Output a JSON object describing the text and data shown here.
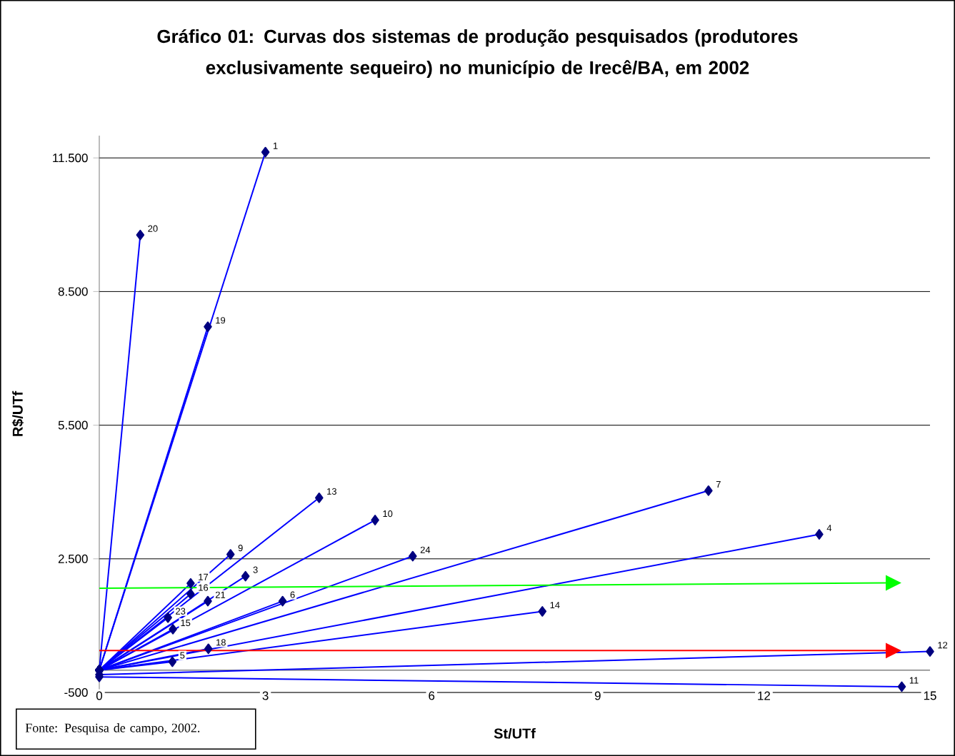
{
  "chart_data": {
    "type": "line",
    "title": "Gráfico 01: Curvas dos sistemas de produção pesquisados (produtores exclusivamente sequeiro) no município de Irecê/BA, em 2002",
    "xlabel": "St/UTf",
    "ylabel": "R$/UTf",
    "xlim": [
      0,
      15
    ],
    "ylim": [
      -500,
      12000
    ],
    "xticks": [
      0,
      3,
      6,
      9,
      12,
      15
    ],
    "yticks": [
      {
        "value": -500,
        "label": "-500"
      },
      {
        "value": 2500,
        "label": "2.500"
      },
      {
        "value": 5500,
        "label": "5.500"
      },
      {
        "value": 8500,
        "label": "8.500"
      },
      {
        "value": 11500,
        "label": "11.500"
      }
    ],
    "grid": "y",
    "marker": "diamond",
    "line_style": "solid",
    "ref_lines": [
      {
        "axis": "y",
        "value": 0,
        "color": "#808080"
      }
    ],
    "series": [
      {
        "color": "#0000ff",
        "x": [
          0,
          3.0
        ],
        "values": [
          0,
          11630
        ]
      },
      {
        "color": "#0000ff",
        "x": [
          0,
          0.74
        ],
        "values": [
          0,
          9770
        ]
      },
      {
        "color": "#0000ff",
        "x": [
          0,
          1.96
        ],
        "values": [
          0,
          7710
        ]
      },
      {
        "color": "#0000ff",
        "x": [
          0,
          3.97
        ],
        "values": [
          0,
          3870
        ]
      },
      {
        "color": "#0000ff",
        "x": [
          0,
          4.98
        ],
        "values": [
          0,
          3370
        ]
      },
      {
        "color": "#0000ff",
        "x": [
          0,
          11.0
        ],
        "values": [
          0,
          4030
        ]
      },
      {
        "color": "#0000ff",
        "x": [
          0,
          13.0
        ],
        "values": [
          0,
          3050
        ]
      },
      {
        "color": "#0000ff",
        "x": [
          0,
          2.37
        ],
        "values": [
          0,
          2600
        ]
      },
      {
        "color": "#0000ff",
        "x": [
          0,
          5.66
        ],
        "values": [
          0,
          2560
        ]
      },
      {
        "color": "#0000ff",
        "x": [
          0,
          2.64
        ],
        "values": [
          0,
          2110
        ]
      },
      {
        "color": "#0000ff",
        "x": [
          0,
          1.65
        ],
        "values": [
          0,
          1950
        ]
      },
      {
        "color": "#0000ff",
        "x": [
          0,
          1.65
        ],
        "values": [
          0,
          1710
        ]
      },
      {
        "color": "#0000ff",
        "x": [
          0,
          1.96
        ],
        "values": [
          0,
          1550
        ]
      },
      {
        "color": "#0000ff",
        "x": [
          0,
          3.31
        ],
        "values": [
          0,
          1550
        ]
      },
      {
        "color": "#0000ff",
        "x": [
          0,
          1.24
        ],
        "values": [
          0,
          1180
        ]
      },
      {
        "color": "#0000ff",
        "x": [
          0,
          1.33
        ],
        "values": [
          0,
          920
        ]
      },
      {
        "color": "#0000ff",
        "x": [
          0,
          8.0
        ],
        "values": [
          0,
          1320
        ]
      },
      {
        "color": "#0000ff",
        "x": [
          0,
          1.97
        ],
        "values": [
          0,
          480
        ]
      },
      {
        "color": "#0000ff",
        "x": [
          0,
          1.32
        ],
        "values": [
          0,
          190
        ]
      },
      {
        "color": "#0000ff",
        "x": [
          0,
          14.49
        ],
        "values": [
          -150,
          -370
        ]
      },
      {
        "color": "#0000ff",
        "x": [
          0,
          15
        ],
        "values": [
          -100,
          420
        ]
      },
      {
        "color": "#00ff00",
        "marker": "none",
        "x": [
          0,
          14.2
        ],
        "values": [
          1840,
          1960
        ]
      },
      {
        "color": "#ff0000",
        "marker": "none",
        "x": [
          0,
          14.2
        ],
        "values": [
          440,
          440
        ]
      }
    ],
    "annotations": [
      {
        "text": "1",
        "x": 3.0,
        "y": 11630
      },
      {
        "text": "20",
        "x": 0.74,
        "y": 9770
      },
      {
        "text": "19",
        "x": 1.96,
        "y": 7710
      },
      {
        "text": "13",
        "x": 3.97,
        "y": 3870
      },
      {
        "text": "10",
        "x": 4.98,
        "y": 3370
      },
      {
        "text": "7",
        "x": 11.0,
        "y": 4030
      },
      {
        "text": "4",
        "x": 13.0,
        "y": 3050
      },
      {
        "text": "9",
        "x": 2.37,
        "y": 2600
      },
      {
        "text": "24",
        "x": 5.66,
        "y": 2560
      },
      {
        "text": "3",
        "x": 2.64,
        "y": 2110
      },
      {
        "text": "17",
        "x": 1.65,
        "y": 1950
      },
      {
        "text": "16",
        "x": 1.65,
        "y": 1710
      },
      {
        "text": "21",
        "x": 1.96,
        "y": 1550
      },
      {
        "text": "6",
        "x": 3.31,
        "y": 1550
      },
      {
        "text": "23",
        "x": 1.24,
        "y": 1180
      },
      {
        "text": "15",
        "x": 1.33,
        "y": 920
      },
      {
        "text": "14",
        "x": 8.0,
        "y": 1320
      },
      {
        "text": "18",
        "x": 1.97,
        "y": 480
      },
      {
        "text": "5",
        "x": 1.32,
        "y": 190
      },
      {
        "text": "11",
        "x": 14.49,
        "y": -370
      },
      {
        "text": "12",
        "x": 15,
        "y": 420
      },
      "Fonte: Pesquisa de campo, 2002."
    ]
  }
}
